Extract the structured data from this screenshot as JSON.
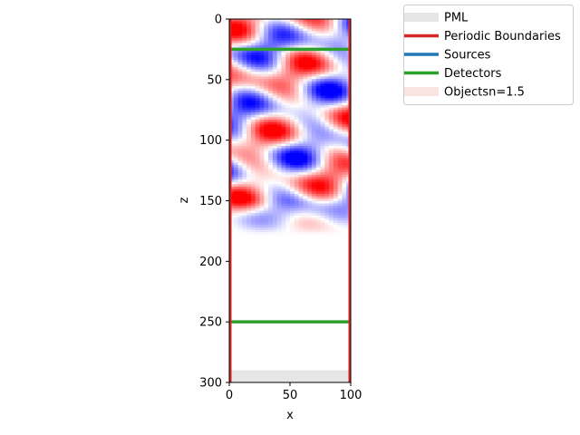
{
  "chart_data": {
    "type": "heatmap",
    "title": "",
    "xlabel": "x",
    "ylabel": "z",
    "xlim": [
      0,
      100
    ],
    "ylim": [
      300,
      0
    ],
    "y_inverted": true,
    "xticks": [
      0,
      50,
      100
    ],
    "yticks": [
      0,
      50,
      100,
      150,
      200,
      250,
      300
    ],
    "grid": false,
    "legend_placement": "outside-top-right",
    "legend": [
      {
        "label": "PML",
        "style": "patch",
        "color": "#e6e6e6"
      },
      {
        "label": "Periodic Boundaries",
        "style": "line",
        "color": "#d62728"
      },
      {
        "label": "Sources",
        "style": "line",
        "color": "#1f77b4"
      },
      {
        "label": "Detectors",
        "style": "line",
        "color": "#2ca02c"
      },
      {
        "label": "Objectsn=1.5",
        "style": "patch",
        "color": "#fbe3e1"
      }
    ],
    "pml_regions": [
      {
        "x_range": [
          0,
          100
        ],
        "z_range": [
          290,
          300
        ]
      }
    ],
    "periodic_boundaries": [
      {
        "x": 0,
        "z_range": [
          0,
          300
        ]
      },
      {
        "x": 100,
        "z_range": [
          0,
          300
        ]
      }
    ],
    "detectors": [
      {
        "z": 25,
        "x_range": [
          0,
          100
        ]
      },
      {
        "z": 250,
        "x_range": [
          0,
          100
        ]
      }
    ],
    "field": {
      "colormap": "bwr",
      "z_extent": [
        0,
        178
      ],
      "x_extent": [
        0,
        100
      ]
    }
  }
}
